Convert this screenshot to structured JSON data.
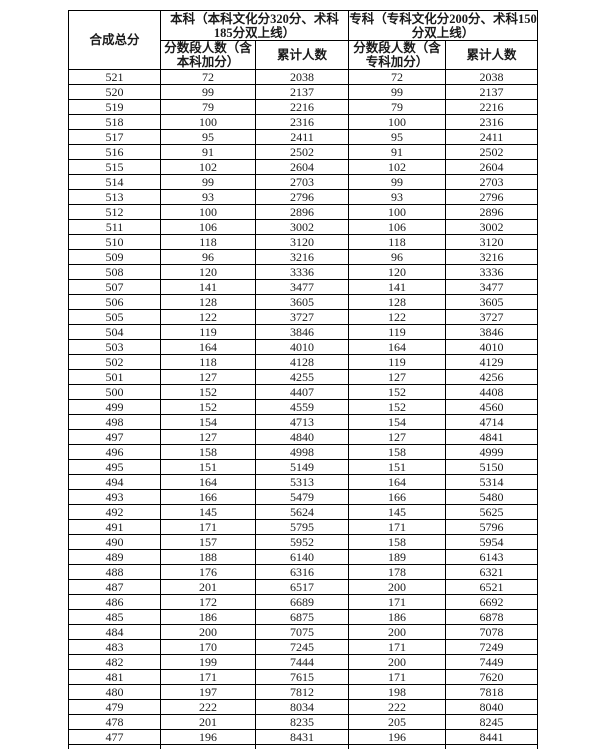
{
  "table": {
    "corner_header": "合成总分",
    "group_headers": [
      "本科（本科文化分320分、术科185分双上线）",
      "专科（专科文化分200分、术科150分双上线）"
    ],
    "sub_headers": [
      "分数段人数（含本科加分）",
      "累计人数",
      "分数段人数（含专科加分）",
      "累计人数"
    ],
    "rows": [
      [
        521,
        72,
        2038,
        72,
        2038
      ],
      [
        520,
        99,
        2137,
        99,
        2137
      ],
      [
        519,
        79,
        2216,
        79,
        2216
      ],
      [
        518,
        100,
        2316,
        100,
        2316
      ],
      [
        517,
        95,
        2411,
        95,
        2411
      ],
      [
        516,
        91,
        2502,
        91,
        2502
      ],
      [
        515,
        102,
        2604,
        102,
        2604
      ],
      [
        514,
        99,
        2703,
        99,
        2703
      ],
      [
        513,
        93,
        2796,
        93,
        2796
      ],
      [
        512,
        100,
        2896,
        100,
        2896
      ],
      [
        511,
        106,
        3002,
        106,
        3002
      ],
      [
        510,
        118,
        3120,
        118,
        3120
      ],
      [
        509,
        96,
        3216,
        96,
        3216
      ],
      [
        508,
        120,
        3336,
        120,
        3336
      ],
      [
        507,
        141,
        3477,
        141,
        3477
      ],
      [
        506,
        128,
        3605,
        128,
        3605
      ],
      [
        505,
        122,
        3727,
        122,
        3727
      ],
      [
        504,
        119,
        3846,
        119,
        3846
      ],
      [
        503,
        164,
        4010,
        164,
        4010
      ],
      [
        502,
        118,
        4128,
        119,
        4129
      ],
      [
        501,
        127,
        4255,
        127,
        4256
      ],
      [
        500,
        152,
        4407,
        152,
        4408
      ],
      [
        499,
        152,
        4559,
        152,
        4560
      ],
      [
        498,
        154,
        4713,
        154,
        4714
      ],
      [
        497,
        127,
        4840,
        127,
        4841
      ],
      [
        496,
        158,
        4998,
        158,
        4999
      ],
      [
        495,
        151,
        5149,
        151,
        5150
      ],
      [
        494,
        164,
        5313,
        164,
        5314
      ],
      [
        493,
        166,
        5479,
        166,
        5480
      ],
      [
        492,
        145,
        5624,
        145,
        5625
      ],
      [
        491,
        171,
        5795,
        171,
        5796
      ],
      [
        490,
        157,
        5952,
        158,
        5954
      ],
      [
        489,
        188,
        6140,
        189,
        6143
      ],
      [
        488,
        176,
        6316,
        178,
        6321
      ],
      [
        487,
        201,
        6517,
        200,
        6521
      ],
      [
        486,
        172,
        6689,
        171,
        6692
      ],
      [
        485,
        186,
        6875,
        186,
        6878
      ],
      [
        484,
        200,
        7075,
        200,
        7078
      ],
      [
        483,
        170,
        7245,
        171,
        7249
      ],
      [
        482,
        199,
        7444,
        200,
        7449
      ],
      [
        481,
        171,
        7615,
        171,
        7620
      ],
      [
        480,
        197,
        7812,
        198,
        7818
      ],
      [
        479,
        222,
        8034,
        222,
        8040
      ],
      [
        478,
        201,
        8235,
        205,
        8245
      ],
      [
        477,
        196,
        8431,
        196,
        8441
      ]
    ]
  }
}
